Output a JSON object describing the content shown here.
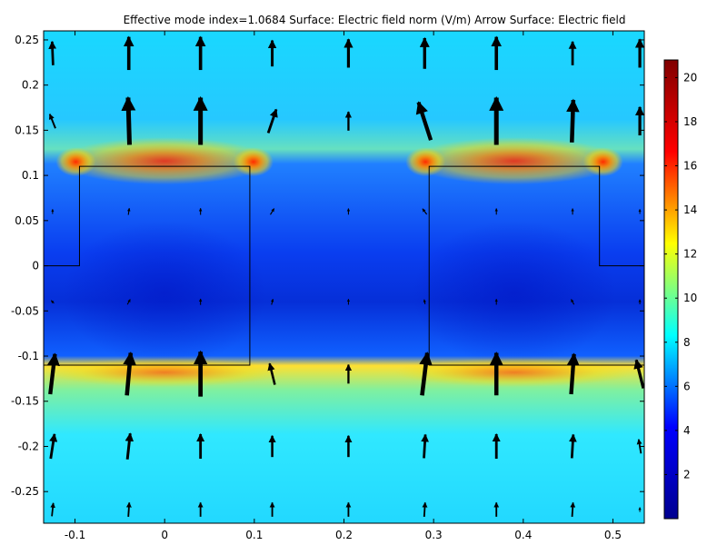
{
  "chart_data": {
    "type": "heatmap",
    "title": "Effective mode index=1.0684   Surface: Electric field norm (V/m)  Arrow Surface: Electric field",
    "xlim": [
      -0.135,
      0.535
    ],
    "ylim": [
      -0.285,
      0.26
    ],
    "x_ticks": [
      "-0.1",
      "0",
      "0.1",
      "0.2",
      "0.3",
      "0.4",
      "0.5"
    ],
    "x_tick_values": [
      -0.1,
      0,
      0.1,
      0.2,
      0.3,
      0.4,
      0.5
    ],
    "y_ticks": [
      "0.25",
      "0.2",
      "0.15",
      "0.1",
      "0.05",
      "0",
      "-0.05",
      "-0.1",
      "-0.15",
      "-0.2",
      "-0.25"
    ],
    "y_tick_values": [
      0.25,
      0.2,
      0.15,
      0.1,
      0.05,
      0,
      -0.05,
      -0.1,
      -0.15,
      -0.2,
      -0.25
    ],
    "colorbar": {
      "range": [
        0,
        20.8
      ],
      "ticks": [
        "20",
        "18",
        "16",
        "14",
        "12",
        "10",
        "8",
        "6",
        "4",
        "2"
      ],
      "tick_values": [
        20,
        18,
        16,
        14,
        12,
        10,
        8,
        6,
        4,
        2
      ],
      "colormap": [
        "#00008f",
        "#0000ff",
        "#00ffff",
        "#ffff00",
        "#ff0000",
        "#800000"
      ]
    },
    "waveguides": [
      {
        "x0": -0.095,
        "x1": 0.095,
        "y0": -0.11,
        "y1": 0.11
      },
      {
        "x0": 0.295,
        "x1": 0.485,
        "y0": -0.11,
        "y1": 0.11
      }
    ],
    "substrate_top_y": 0,
    "arrow_grid": {
      "x": [
        -0.125,
        -0.04,
        0.04,
        0.12,
        0.205,
        0.29,
        0.37,
        0.455,
        0.53
      ],
      "y": [
        0.235,
        0.16,
        0.06,
        -0.04,
        -0.12,
        -0.2,
        -0.27
      ],
      "vectors": [
        [
          [
            -0.2,
            5
          ],
          [
            0,
            7
          ],
          [
            0,
            7
          ],
          [
            0,
            5.5
          ],
          [
            0,
            6
          ],
          [
            0,
            6.5
          ],
          [
            0,
            7
          ],
          [
            0,
            5
          ],
          [
            0,
            6
          ]
        ],
        [
          [
            -1.2,
            3
          ],
          [
            -0.3,
            10
          ],
          [
            0,
            10
          ],
          [
            1.7,
            5
          ],
          [
            0,
            4
          ],
          [
            -2.6,
            8
          ],
          [
            0,
            10
          ],
          [
            0.3,
            9
          ],
          [
            0,
            6
          ]
        ],
        [
          [
            0,
            1
          ],
          [
            0.2,
            1.4
          ],
          [
            0,
            1.4
          ],
          [
            0.8,
            1.3
          ],
          [
            0,
            1.3
          ],
          [
            -0.9,
            1.2
          ],
          [
            0,
            1.3
          ],
          [
            0,
            1.3
          ],
          [
            0,
            1
          ]
        ],
        [
          [
            -0.6,
            0.6
          ],
          [
            0.6,
            1.1
          ],
          [
            0,
            1.3
          ],
          [
            0.3,
            1.2
          ],
          [
            0,
            1.2
          ],
          [
            -0.2,
            1
          ],
          [
            0,
            1.2
          ],
          [
            -0.6,
            1.1
          ],
          [
            0,
            1
          ]
        ],
        [
          [
            1,
            8.5
          ],
          [
            0.8,
            9
          ],
          [
            0,
            9.5
          ],
          [
            -1.1,
            4.5
          ],
          [
            0,
            4
          ],
          [
            1.1,
            9
          ],
          [
            0,
            9
          ],
          [
            0.6,
            8.5
          ],
          [
            -1.5,
            6
          ]
        ],
        [
          [
            0.8,
            5.2
          ],
          [
            0.6,
            5.5
          ],
          [
            0,
            5.2
          ],
          [
            0,
            4.5
          ],
          [
            0,
            4.5
          ],
          [
            0.3,
            5
          ],
          [
            0,
            5.2
          ],
          [
            0.3,
            5
          ],
          [
            -0.5,
            3
          ]
        ],
        [
          [
            0.3,
            2.8
          ],
          [
            0.2,
            3
          ],
          [
            0,
            3
          ],
          [
            0,
            3
          ],
          [
            0,
            3
          ],
          [
            0.2,
            3
          ],
          [
            0,
            3
          ],
          [
            0.2,
            3
          ],
          [
            0,
            1
          ]
        ]
      ]
    }
  }
}
